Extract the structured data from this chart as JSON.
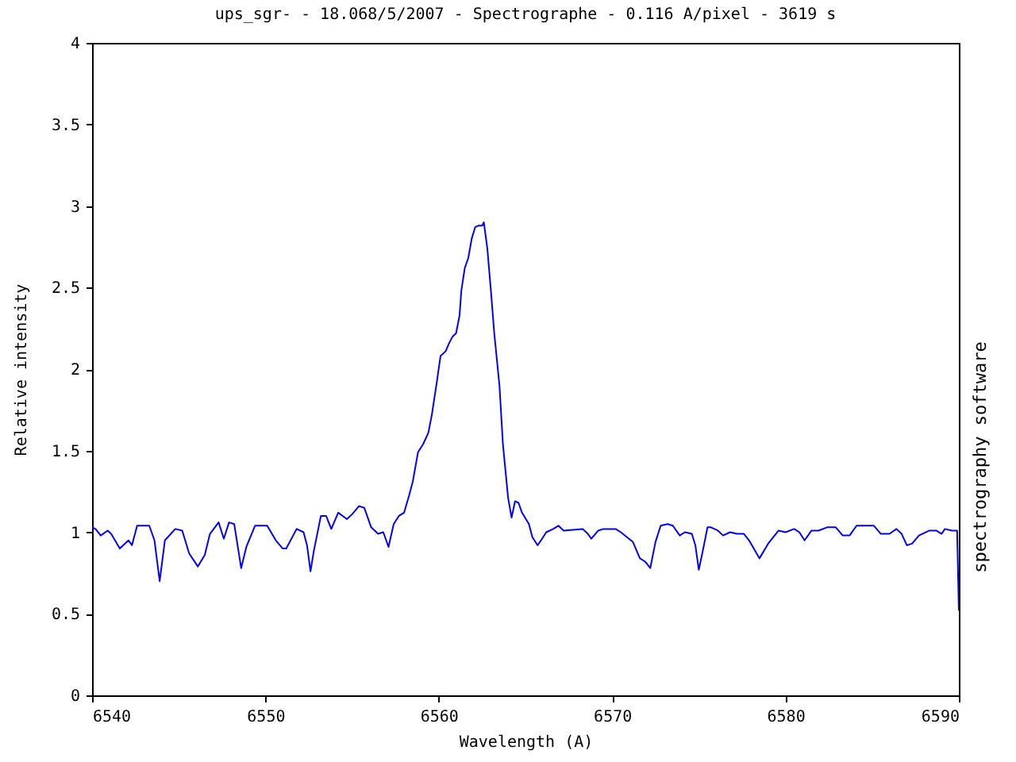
{
  "chart_data": {
    "type": "line",
    "title": "ups_sgr- - 18.068/5/2007 - Spectrographe - 0.116 A/pixel - 3619 s",
    "xlabel": "Wavelength (A)",
    "ylabel": "Relative intensity",
    "annotations": [
      "spectrography software"
    ],
    "x": [
      6540.0,
      6540.2,
      6540.5,
      6540.9,
      6541.1,
      6541.6,
      6542.1,
      6542.3,
      6542.6,
      6543.3,
      6543.6,
      6543.9,
      6544.2,
      6544.8,
      6545.2,
      6545.6,
      6546.1,
      6546.5,
      6546.8,
      6547.3,
      6547.6,
      6547.9,
      6548.2,
      6548.6,
      6548.9,
      6549.4,
      6550.1,
      6550.6,
      6551.0,
      6551.2,
      6551.8,
      6552.2,
      6552.4,
      6552.6,
      6552.8,
      6553.2,
      6553.5,
      6553.8,
      6554.2,
      6554.7,
      6555.0,
      6555.4,
      6555.7,
      6556.1,
      6556.5,
      6556.8,
      6557.1,
      6557.4,
      6557.7,
      6558.0,
      6558.3,
      6558.5,
      6558.8,
      6559.1,
      6559.4,
      6559.6,
      6559.9,
      6560.1,
      6560.4,
      6560.6,
      6560.8,
      6561.0,
      6561.2,
      6561.3,
      6561.5,
      6561.7,
      6561.9,
      6562.1,
      6562.3,
      6562.5,
      6562.6,
      6562.8,
      6563.0,
      6563.2,
      6563.5,
      6563.7,
      6564.0,
      6564.2,
      6564.4,
      6564.6,
      6564.8,
      6565.2,
      6565.4,
      6565.7,
      6565.9,
      6566.2,
      6566.6,
      6566.9,
      6567.2,
      6568.3,
      6568.6,
      6568.8,
      6569.2,
      6569.5,
      6570.2,
      6570.5,
      6571.2,
      6571.6,
      6571.9,
      6572.2,
      6572.5,
      6572.8,
      6573.2,
      6573.5,
      6573.9,
      6574.2,
      6574.6,
      6574.8,
      6575.0,
      6575.2,
      6575.5,
      6575.7,
      6576.1,
      6576.4,
      6576.8,
      6577.2,
      6577.6,
      6577.9,
      6578.5,
      6579.0,
      6579.6,
      6580.0,
      6580.5,
      6580.8,
      6581.1,
      6581.5,
      6581.9,
      6582.4,
      6582.9,
      6583.3,
      6583.7,
      6584.1,
      6584.6,
      6585.1,
      6585.5,
      6586.0,
      6586.4,
      6586.7,
      6587.0,
      6587.3,
      6587.7,
      6588.3,
      6588.7,
      6589.0,
      6589.2,
      6589.6,
      6589.9,
      6590.0
    ],
    "series": [
      {
        "color": "#0000ff",
        "values": [
          1.03,
          1.02,
          0.98,
          1.01,
          0.99,
          0.9,
          0.95,
          0.92,
          1.04,
          1.04,
          0.95,
          0.7,
          0.95,
          1.02,
          1.01,
          0.87,
          0.79,
          0.86,
          0.99,
          1.06,
          0.96,
          1.06,
          1.05,
          0.78,
          0.91,
          1.04,
          1.04,
          0.95,
          0.9,
          0.9,
          1.02,
          1.0,
          0.92,
          0.76,
          0.89,
          1.1,
          1.1,
          1.02,
          1.12,
          1.08,
          1.11,
          1.16,
          1.15,
          1.03,
          0.99,
          1.0,
          0.91,
          1.05,
          1.1,
          1.12,
          1.23,
          1.31,
          1.49,
          1.54,
          1.61,
          1.72,
          1.93,
          2.08,
          2.11,
          2.16,
          2.2,
          2.22,
          2.33,
          2.48,
          2.62,
          2.68,
          2.8,
          2.87,
          2.88,
          2.88,
          2.9,
          2.74,
          2.49,
          2.22,
          1.9,
          1.54,
          1.21,
          1.09,
          1.19,
          1.18,
          1.12,
          1.05,
          0.97,
          0.92,
          0.95,
          1.0,
          1.02,
          1.04,
          1.01,
          1.02,
          0.99,
          0.96,
          1.01,
          1.02,
          1.02,
          1.0,
          0.94,
          0.84,
          0.82,
          0.78,
          0.94,
          1.04,
          1.05,
          1.04,
          0.98,
          1.0,
          0.99,
          0.92,
          0.77,
          0.87,
          1.03,
          1.03,
          1.01,
          0.98,
          1.0,
          0.99,
          0.99,
          0.95,
          0.84,
          0.93,
          1.01,
          1.0,
          1.02,
          1.0,
          0.95,
          1.01,
          1.01,
          1.03,
          1.03,
          0.98,
          0.98,
          1.04,
          1.04,
          1.04,
          0.99,
          0.99,
          1.02,
          0.99,
          0.92,
          0.93,
          0.98,
          1.01,
          1.01,
          0.99,
          1.02,
          1.01,
          1.01,
          0.52
        ]
      }
    ],
    "xlim": [
      6540,
      6590
    ],
    "ylim": [
      0,
      4
    ],
    "xticks": [
      6540,
      6550,
      6560,
      6570,
      6580,
      6590
    ],
    "yticks": [
      0,
      0.5,
      1,
      1.5,
      2,
      2.5,
      3,
      3.5,
      4
    ],
    "grid": false,
    "legend": false,
    "marker": "none",
    "line_style": "solid"
  }
}
